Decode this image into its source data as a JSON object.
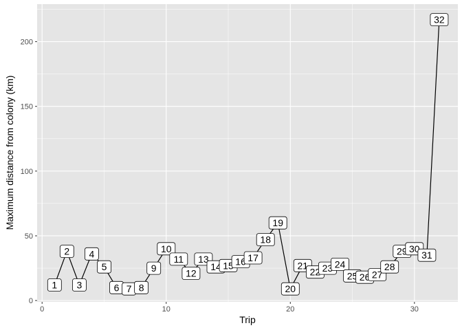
{
  "chart_data": {
    "type": "line",
    "title": "",
    "xlabel": "Trip",
    "ylabel": "Maximum distance from colony (km)",
    "xlim": [
      -0.4,
      33.5
    ],
    "ylim": [
      -1,
      229
    ],
    "xticks": [
      0,
      10,
      20,
      30
    ],
    "yticks": [
      0,
      50,
      100,
      150,
      200
    ],
    "grid": true,
    "colors": {
      "panel_background": "#e5e5e5",
      "grid": "#ffffff",
      "line": "#000000",
      "label_fill": "#ffffff",
      "label_border": "#000000"
    },
    "series": [
      {
        "x": [
          1,
          2,
          3,
          4,
          5,
          6,
          7,
          8,
          9,
          10,
          11,
          12,
          13,
          14,
          15,
          16,
          17,
          18,
          19,
          20,
          21,
          22,
          23,
          24,
          25,
          26,
          27,
          28,
          29,
          30,
          31,
          32
        ],
        "y": [
          12,
          38,
          12,
          36,
          26,
          10,
          9,
          10,
          25,
          40,
          32,
          21,
          32,
          26,
          27,
          30,
          33,
          47,
          60,
          9,
          27,
          22,
          25,
          28,
          19,
          18,
          20,
          26,
          38,
          40,
          35,
          217
        ],
        "labels": [
          "1",
          "2",
          "3",
          "4",
          "5",
          "6",
          "7",
          "8",
          "9",
          "10",
          "11",
          "12",
          "13",
          "14",
          "15",
          "16",
          "17",
          "18",
          "19",
          "20",
          "21",
          "22",
          "23",
          "24",
          "25",
          "26",
          "27",
          "28",
          "29",
          "30",
          "31",
          "32"
        ]
      }
    ]
  }
}
